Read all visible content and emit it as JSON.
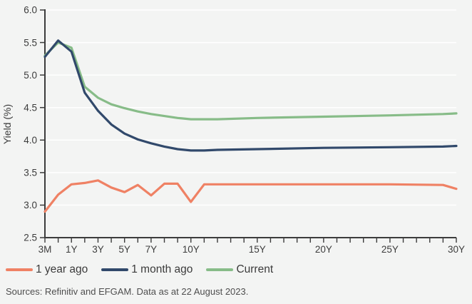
{
  "style": {
    "background": "#F3F4F3",
    "axis_color": "#3C3C3C",
    "grid_color": "#FFFFFF",
    "tick_label_color": "#3C3C3C",
    "legend_text_color": "#3B3B3B",
    "source_text_color": "#4E4E4E"
  },
  "chart_data": {
    "type": "line",
    "title": "",
    "xlabel": "",
    "ylabel": "Yield (%)",
    "ylim": [
      2.5,
      6.0
    ],
    "grid": "horizontal-white-gridlines",
    "legend_position": "bottom-left",
    "y_ticks": [
      "2.5",
      "3.0",
      "3.5",
      "4.0",
      "4.5",
      "5.0",
      "5.5",
      "6.0"
    ],
    "x_minor_tick_count": 32,
    "x_major_ticks": [
      {
        "label": "3M",
        "index": 0
      },
      {
        "label": "1Y",
        "index": 2
      },
      {
        "label": "3Y",
        "index": 4
      },
      {
        "label": "5Y",
        "index": 6
      },
      {
        "label": "7Y",
        "index": 8
      },
      {
        "label": "10Y",
        "index": 11
      },
      {
        "label": "15Y",
        "index": 16
      },
      {
        "label": "20Y",
        "index": 21
      },
      {
        "label": "25Y",
        "index": 26
      },
      {
        "label": "30Y",
        "index": 31
      }
    ],
    "maturities": [
      "3M",
      "6M",
      "1Y",
      "2Y",
      "3Y",
      "4Y",
      "5Y",
      "6Y",
      "7Y",
      "8Y",
      "9Y",
      "10Y",
      "11Y",
      "12Y",
      "15Y",
      "20Y",
      "25Y",
      "29Y",
      "30Y"
    ],
    "x_indices": [
      0,
      1,
      2,
      3,
      4,
      5,
      6,
      7,
      8,
      9,
      10,
      11,
      12,
      13,
      16,
      21,
      26,
      30,
      31
    ],
    "series": [
      {
        "name": "1 year ago",
        "color": "#EF8164",
        "values": [
          2.9,
          3.16,
          3.32,
          3.34,
          3.38,
          3.27,
          3.2,
          3.31,
          3.15,
          3.33,
          3.33,
          3.05,
          3.32,
          3.32,
          3.32,
          3.32,
          3.32,
          3.31,
          3.25
        ]
      },
      {
        "name": "1 month ago",
        "color": "#31496B",
        "values": [
          5.28,
          5.53,
          5.36,
          4.73,
          4.45,
          4.24,
          4.1,
          4.01,
          3.95,
          3.9,
          3.86,
          3.84,
          3.84,
          3.85,
          3.86,
          3.88,
          3.89,
          3.9,
          3.91
        ]
      },
      {
        "name": "Current",
        "color": "#87BC88",
        "values": [
          5.3,
          5.5,
          5.42,
          4.82,
          4.65,
          4.55,
          4.49,
          4.44,
          4.4,
          4.37,
          4.34,
          4.32,
          4.32,
          4.32,
          4.34,
          4.36,
          4.38,
          4.4,
          4.41
        ]
      }
    ]
  },
  "footer": {
    "source_text": "Sources: Refinitiv and EFGAM. Data as at 22 August 2023."
  }
}
